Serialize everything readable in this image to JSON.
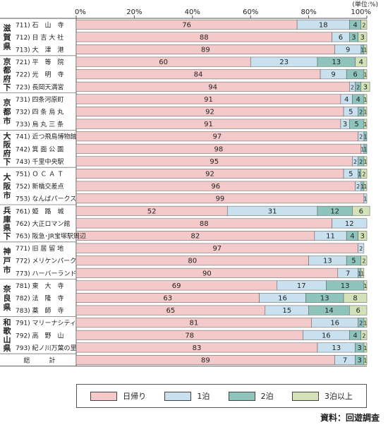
{
  "chart_data": {
    "type": "bar",
    "orientation": "horizontal",
    "stacked": true,
    "unit_label": "(単位:%)",
    "x_ticks": [
      "0%",
      "20%",
      "40%",
      "60%",
      "80%",
      "100%"
    ],
    "xlim": [
      0,
      100
    ],
    "groups": [
      {
        "label": "滋賀県",
        "start": 0,
        "count": 3
      },
      {
        "label": "京都府下",
        "start": 3,
        "count": 3
      },
      {
        "label": "京都市",
        "start": 6,
        "count": 3
      },
      {
        "label": "大阪府下",
        "start": 9,
        "count": 3
      },
      {
        "label": "大阪市",
        "start": 12,
        "count": 3
      },
      {
        "label": "兵庫県下",
        "start": 15,
        "count": 3
      },
      {
        "label": "神戸市",
        "start": 18,
        "count": 3
      },
      {
        "label": "奈良県",
        "start": 21,
        "count": 3
      },
      {
        "label": "和歌山県",
        "start": 24,
        "count": 3
      }
    ],
    "categories": [
      "711) 石　山　寺",
      "712) 日 吉 大 社",
      "713) 大　津　港",
      "721) 平　等　院",
      "722) 光　明　寺",
      "723) 長岡天満宮",
      "731) 四条河原町",
      "732) 四 条 烏 丸",
      "733) 烏 丸 三 条",
      "741) 近つ飛鳥博物館",
      "742) 箕 面 公 園",
      "743) 千里中央駅",
      "751) Ｏ Ｃ Ａ Ｔ",
      "752) 新橋交差点",
      "753) なんばパークス",
      "761) 姫　路　城",
      "762) 大正ロマン館",
      "763) 阪急･JR宝塚駅周辺",
      "771) 旧 居 留 地",
      "772) メリケンパーク",
      "773) ハーバーランド",
      "781) 東　大　寺",
      "782) 法　隆　寺",
      "783) 薬　師　寺",
      "791) マリーナシティ",
      "792) 高　野　山",
      "793) 紀ノ川万葉の里",
      "総　　　計"
    ],
    "series": [
      {
        "name": "日帰り",
        "color": "#f4c9c9",
        "values": [
          76,
          88,
          89,
          60,
          84,
          94,
          91,
          92,
          91,
          97,
          98,
          95,
          92,
          96,
          99,
          52,
          88,
          82,
          97,
          80,
          90,
          69,
          63,
          65,
          81,
          78,
          83,
          89
        ]
      },
      {
        "name": "1泊",
        "color": "#c9e1ee",
        "values": [
          18,
          6,
          9,
          23,
          9,
          2,
          4,
          5,
          3,
          2,
          1,
          2,
          5,
          2,
          1,
          31,
          12,
          11,
          2,
          13,
          7,
          17,
          16,
          15,
          16,
          16,
          13,
          7
        ]
      },
      {
        "name": "2泊",
        "color": "#8fc4bd",
        "values": [
          4,
          3,
          1,
          13,
          6,
          2,
          4,
          2,
          5,
          1,
          1,
          2,
          1,
          1,
          0,
          12,
          0,
          4,
          0,
          5,
          1,
          13,
          13,
          14,
          2,
          4,
          3,
          3
        ]
      },
      {
        "name": "3泊以上",
        "color": "#d3e2b8",
        "values": [
          2,
          3,
          1,
          4,
          1,
          3,
          1,
          1,
          1,
          0,
          0,
          1,
          2,
          1,
          0,
          6,
          0,
          3,
          0,
          2,
          1,
          1,
          8,
          6,
          1,
          2,
          1,
          1
        ]
      }
    ],
    "legend_position": "bottom",
    "source": "資料：回遊調査"
  }
}
